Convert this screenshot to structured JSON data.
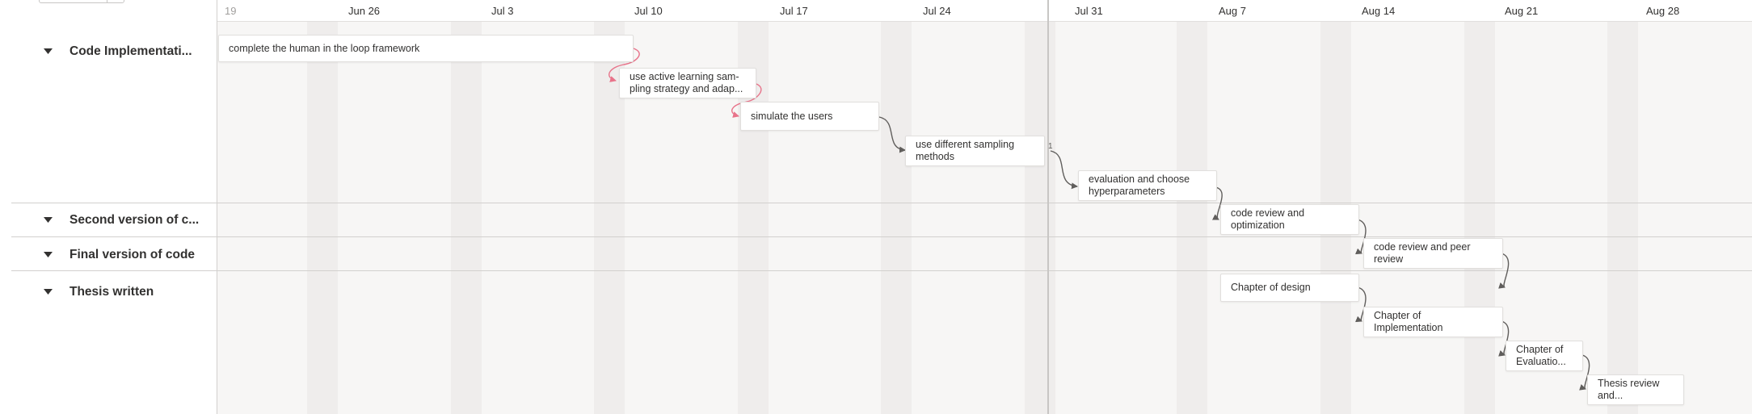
{
  "timeline": {
    "dates": [
      {
        "label": "19",
        "faded": true
      },
      {
        "label": "Jun 26"
      },
      {
        "label": "Jul 3"
      },
      {
        "label": "Jul 10"
      },
      {
        "label": "Jul 17"
      },
      {
        "label": "Jul 24"
      },
      {
        "label": "Jul 31"
      },
      {
        "label": "Aug 7"
      },
      {
        "label": "Aug 14"
      },
      {
        "label": "Aug 21"
      },
      {
        "label": "Aug 28"
      }
    ]
  },
  "groups": [
    {
      "label": "Code Implementati..."
    },
    {
      "label": "Second version of c..."
    },
    {
      "label": "Final version of code"
    },
    {
      "label": "Thesis written"
    }
  ],
  "tasks": [
    {
      "lines": [
        "complete the human in the loop framework"
      ]
    },
    {
      "lines": [
        "use active learning sam-",
        "pling strategy and adap..."
      ]
    },
    {
      "lines": [
        "simulate the users"
      ]
    },
    {
      "lines": [
        "use different sampling",
        "methods"
      ]
    },
    {
      "lines": [
        "evaluation and choose",
        "hyperparameters"
      ]
    },
    {
      "lines": [
        "code review and",
        "optimization"
      ]
    },
    {
      "lines": [
        "code review and peer",
        "review"
      ]
    },
    {
      "lines": [
        "Chapter of design"
      ]
    },
    {
      "lines": [
        "Chapter of",
        "Implementation"
      ]
    },
    {
      "lines": [
        "Chapter of",
        "Evaluatio..."
      ]
    },
    {
      "lines": [
        "Thesis review",
        "and..."
      ]
    }
  ],
  "colors": {
    "dependency_link": "#605e5c",
    "conflict_link": "#e8738a"
  }
}
